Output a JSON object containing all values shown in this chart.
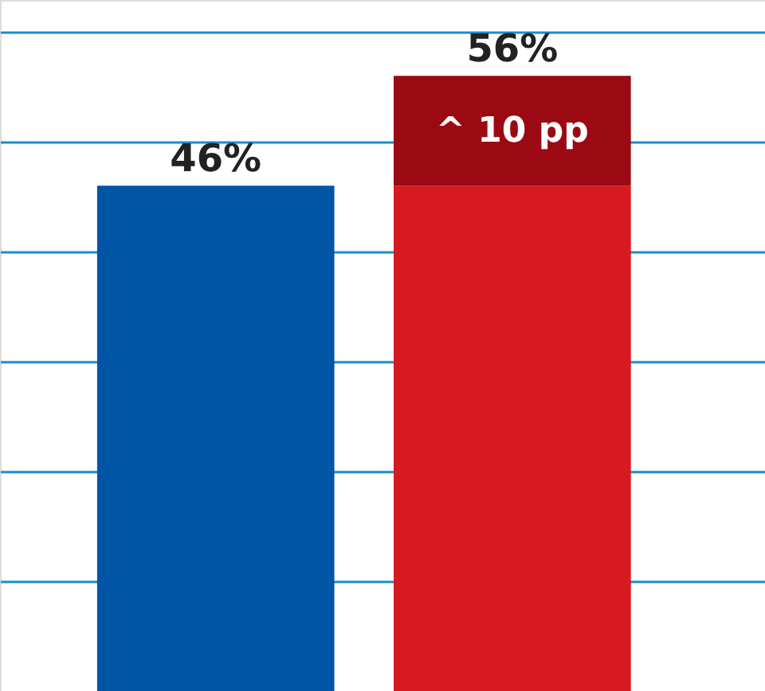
{
  "chart_data": {
    "type": "bar",
    "stacked": true,
    "categories": [
      null,
      null
    ],
    "series": [
      {
        "values": [
          46,
          46
        ],
        "colors": [
          "#0055a5",
          "#d71920"
        ]
      },
      {
        "values": [
          null,
          10
        ],
        "color": "#9b0a12",
        "value_labels": [
          null,
          "^ 10 pp"
        ]
      }
    ],
    "totals": [
      "46%",
      "56%"
    ],
    "ylim": [
      0,
      62.9
    ],
    "yticks": [
      {
        "value": 10,
        "label": null
      },
      {
        "value": 20,
        "label": null
      },
      {
        "value": 30,
        "label": null
      },
      {
        "value": 40,
        "label": null
      },
      {
        "value": 50,
        "label": null
      },
      {
        "value": 60,
        "label": null
      }
    ],
    "grid": "y",
    "tick_labels": false
  }
}
